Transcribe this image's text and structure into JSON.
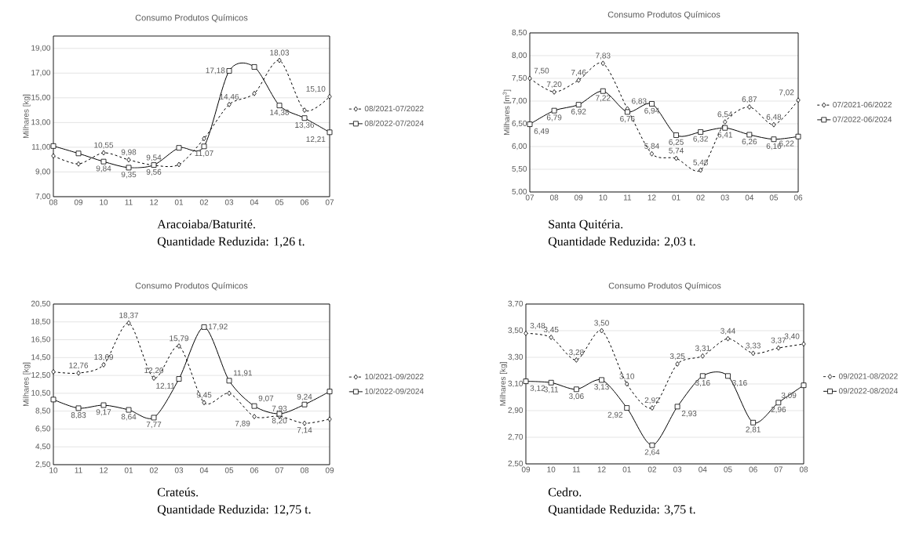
{
  "chart_data": [
    {
      "type": "line",
      "title": "Consumo Produtos Químicos",
      "ylabel": "Milhares [kg]",
      "categories": [
        "08",
        "09",
        "10",
        "11",
        "12",
        "01",
        "02",
        "03",
        "04",
        "05",
        "06",
        "07"
      ],
      "series": [
        {
          "name": "08/2021-07/2022",
          "color": "#000000",
          "marker": "diamond",
          "line_style": "dashed",
          "values": [
            10.3,
            9.65,
            10.55,
            9.98,
            9.54,
            9.6,
            11.7,
            14.46,
            15.35,
            18.03,
            14.0,
            15.1
          ],
          "value_labels": [
            null,
            null,
            "10,55",
            "9,98",
            "9,54",
            null,
            null,
            "14,46",
            null,
            "18,03",
            null,
            "15,10"
          ]
        },
        {
          "name": "08/2022-07/2024",
          "color": "#000000",
          "marker": "square",
          "line_style": "solid",
          "values": [
            11.1,
            10.5,
            9.84,
            9.35,
            9.56,
            10.95,
            11.07,
            17.18,
            17.5,
            14.38,
            13.36,
            12.21
          ],
          "value_labels": [
            null,
            null,
            "9,84",
            "9,35",
            "9,56",
            null,
            "11,07",
            "17,18",
            null,
            "14,38",
            "13,36",
            "12,21"
          ]
        }
      ],
      "ylim": [
        7,
        20
      ],
      "yticks": [
        {
          "value": 7,
          "label": "7,00"
        },
        {
          "value": 9,
          "label": "9,00"
        },
        {
          "value": 11,
          "label": "11,00"
        },
        {
          "value": 13,
          "label": "13,00"
        },
        {
          "value": 15,
          "label": "15,00"
        },
        {
          "value": 17,
          "label": "17,00"
        },
        {
          "value": 19,
          "label": "19,00"
        }
      ],
      "grid": "y",
      "legend": "right",
      "annotations": [
        "Aracoiaba/Baturité.",
        "Quantidade Reduzida: 1,26 t."
      ]
    },
    {
      "type": "line",
      "title": "Consumo Produtos Químicos",
      "ylabel": "Milhares [m$^{3}$]",
      "categories": [
        "07",
        "08",
        "09",
        "10",
        "11",
        "12",
        "01",
        "02",
        "03",
        "04",
        "05",
        "06"
      ],
      "series": [
        {
          "name": "07/2021-06/2022",
          "color": "#000000",
          "marker": "diamond",
          "line_style": "dashed",
          "values": [
            7.5,
            7.2,
            7.46,
            7.83,
            6.83,
            5.84,
            5.74,
            5.48,
            6.54,
            6.87,
            6.48,
            7.02
          ],
          "value_labels": [
            "7,50",
            "7,20",
            "7,46",
            "7,83",
            "6,83",
            "5,84",
            "5,74",
            "5,48",
            "6,54",
            "6,87",
            "6,48",
            "7,02"
          ]
        },
        {
          "name": "07/2022-06/2024",
          "color": "#000000",
          "marker": "square",
          "line_style": "solid",
          "values": [
            6.49,
            6.79,
            6.92,
            7.22,
            6.76,
            6.94,
            6.25,
            6.32,
            6.41,
            6.26,
            6.16,
            6.22
          ],
          "value_labels": [
            "6,49",
            "6,79",
            "6,92",
            "7,22",
            "6,76",
            "6,94",
            "6,25",
            "6,32",
            "6,41",
            "6,26",
            "6,16",
            "6,22"
          ]
        }
      ],
      "ylim": [
        5,
        8.5
      ],
      "yticks": [
        {
          "value": 5,
          "label": "5,00"
        },
        {
          "value": 5.5,
          "label": "5,50"
        },
        {
          "value": 6,
          "label": "6,00"
        },
        {
          "value": 6.5,
          "label": "6,50"
        },
        {
          "value": 7,
          "label": "7,00"
        },
        {
          "value": 7.5,
          "label": "7,50"
        },
        {
          "value": 8,
          "label": "8,00"
        },
        {
          "value": 8.5,
          "label": "8,50"
        }
      ],
      "grid": "y",
      "legend": "right",
      "annotations": [
        "Santa Quitéria.",
        "Quantidade Reduzida: 2,03 t."
      ]
    },
    {
      "type": "line",
      "title": "Consumo Produtos Químicos",
      "ylabel": "Milhares [kg]",
      "categories": [
        "10",
        "11",
        "12",
        "01",
        "02",
        "03",
        "04",
        "05",
        "06",
        "07",
        "08",
        "09"
      ],
      "series": [
        {
          "name": "10/2021-09/2022",
          "color": "#000000",
          "marker": "diamond",
          "line_style": "dashed",
          "values": [
            12.9,
            12.76,
            13.69,
            18.37,
            12.2,
            15.79,
            9.45,
            10.5,
            7.89,
            7.93,
            7.14,
            7.6
          ],
          "value_labels": [
            null,
            "12,76",
            "13,69",
            "18,37",
            "12,20",
            "15,79",
            "9,45",
            null,
            "7,89",
            "7,93",
            "7,14",
            null
          ]
        },
        {
          "name": "10/2022-09/2024",
          "color": "#000000",
          "marker": "square",
          "line_style": "solid",
          "values": [
            9.8,
            8.83,
            9.17,
            8.64,
            7.77,
            12.11,
            17.92,
            11.91,
            9.07,
            8.2,
            9.24,
            10.7
          ],
          "value_labels": [
            null,
            "8,83",
            "9,17",
            "8,64",
            "7,77",
            "12,11",
            "17,92",
            "11,91",
            "9,07",
            "8,20",
            "9,24",
            null
          ]
        }
      ],
      "ylim": [
        2.5,
        20.5
      ],
      "yticks": [
        {
          "value": 2.5,
          "label": "2,50"
        },
        {
          "value": 4.5,
          "label": "4,50"
        },
        {
          "value": 6.5,
          "label": "6,50"
        },
        {
          "value": 8.5,
          "label": "8,50"
        },
        {
          "value": 10.5,
          "label": "10,50"
        },
        {
          "value": 12.5,
          "label": "12,50"
        },
        {
          "value": 14.5,
          "label": "14,50"
        },
        {
          "value": 16.5,
          "label": "16,50"
        },
        {
          "value": 18.5,
          "label": "18,50"
        },
        {
          "value": 20.5,
          "label": "20,50"
        }
      ],
      "grid": "y",
      "legend": "right",
      "annotations": [
        "Crateús.",
        "Quantidade Reduzida: 12,75 t."
      ]
    },
    {
      "type": "line",
      "title": "Consumo Produtos Químicos",
      "ylabel": "Milhares [kg]",
      "categories": [
        "09",
        "10",
        "11",
        "12",
        "01",
        "02",
        "03",
        "04",
        "05",
        "06",
        "07",
        "08"
      ],
      "series": [
        {
          "name": "09/2021-08/2022",
          "color": "#000000",
          "marker": "diamond",
          "line_style": "dashed",
          "values": [
            3.48,
            3.45,
            3.28,
            3.5,
            3.1,
            2.92,
            3.25,
            3.31,
            3.44,
            3.33,
            3.37,
            3.4
          ],
          "value_labels": [
            "3,48",
            "3,45",
            "3,28",
            "3,50",
            "3,10",
            "2,92",
            "3,25",
            "3,31",
            "3,44",
            "3,33",
            "3,37",
            "3,40"
          ]
        },
        {
          "name": "09/2022-08/2024",
          "color": "#000000",
          "marker": "square",
          "line_style": "solid",
          "values": [
            3.12,
            3.11,
            3.06,
            3.13,
            2.92,
            2.64,
            2.93,
            3.16,
            3.16,
            2.81,
            2.96,
            3.09
          ],
          "value_labels": [
            "3,12",
            "3,11",
            "3,06",
            "3,13",
            "2,92",
            "2,64",
            "2,93",
            "3,16",
            "3,16",
            "2,81",
            "2,96",
            "3,09"
          ]
        }
      ],
      "ylim": [
        2.5,
        3.7
      ],
      "yticks": [
        {
          "value": 2.5,
          "label": "2,50"
        },
        {
          "value": 2.7,
          "label": "2,70"
        },
        {
          "value": 2.9,
          "label": "2,90"
        },
        {
          "value": 3.1,
          "label": "3,10"
        },
        {
          "value": 3.3,
          "label": "3,30"
        },
        {
          "value": 3.5,
          "label": "3,50"
        },
        {
          "value": 3.7,
          "label": "3,70"
        }
      ],
      "grid": "y",
      "legend": "right",
      "annotations": [
        "Cedro.",
        "Quantidade Reduzida: 3,75 t."
      ]
    }
  ]
}
